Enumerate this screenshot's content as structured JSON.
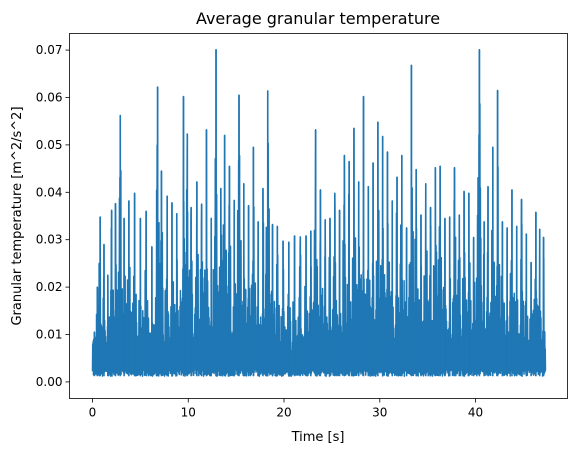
{
  "chart_data": {
    "type": "line",
    "title": "Average granular temperature",
    "xlabel": "Time [s]",
    "ylabel": "Granular temperature [m^2/s^2]",
    "xlim": [
      -2.4,
      49.6
    ],
    "ylim": [
      -0.0035,
      0.0735
    ],
    "xticks": [
      0,
      10,
      20,
      30,
      40
    ],
    "xtick_labels": [
      "0",
      "10",
      "20",
      "30",
      "40"
    ],
    "yticks": [
      0.0,
      0.01,
      0.02,
      0.03,
      0.04,
      0.05,
      0.06,
      0.07
    ],
    "ytick_labels": [
      "0.00",
      "0.01",
      "0.02",
      "0.03",
      "0.04",
      "0.05",
      "0.06",
      "0.07"
    ],
    "grid": false,
    "colors": {
      "line": "#1f77b4"
    },
    "series": [
      {
        "x_range": [
          0.0,
          47.3
        ],
        "baseline_min": 0.0012,
        "baseline_max": 0.0028,
        "peaks": [
          [
            0.2,
            0.0105
          ],
          [
            0.5,
            0.02
          ],
          [
            0.7,
            0.025
          ],
          [
            0.8,
            0.0348
          ],
          [
            1.2,
            0.029
          ],
          [
            1.6,
            0.0225
          ],
          [
            2.0,
            0.0362
          ],
          [
            2.4,
            0.0376
          ],
          [
            2.9,
            0.0562
          ],
          [
            3.3,
            0.0345
          ],
          [
            3.8,
            0.0382
          ],
          [
            4.4,
            0.0398
          ],
          [
            5.0,
            0.0345
          ],
          [
            5.6,
            0.036
          ],
          [
            6.2,
            0.0285
          ],
          [
            6.8,
            0.0622
          ],
          [
            7.2,
            0.0445
          ],
          [
            7.8,
            0.0392
          ],
          [
            8.3,
            0.0378
          ],
          [
            8.8,
            0.0355
          ],
          [
            9.5,
            0.0602
          ],
          [
            9.9,
            0.0523
          ],
          [
            10.3,
            0.0368
          ],
          [
            10.9,
            0.0422
          ],
          [
            11.4,
            0.0375
          ],
          [
            11.9,
            0.0532
          ],
          [
            12.4,
            0.0345
          ],
          [
            12.9,
            0.0701
          ],
          [
            13.4,
            0.0408
          ],
          [
            13.8,
            0.052
          ],
          [
            14.3,
            0.0455
          ],
          [
            14.8,
            0.0383
          ],
          [
            15.3,
            0.0605
          ],
          [
            15.8,
            0.0418
          ],
          [
            16.3,
            0.0372
          ],
          [
            16.8,
            0.0495
          ],
          [
            17.3,
            0.0338
          ],
          [
            17.8,
            0.0408
          ],
          [
            18.3,
            0.0614
          ],
          [
            18.8,
            0.0332
          ],
          [
            19.3,
            0.0328
          ],
          [
            19.9,
            0.0297
          ],
          [
            20.5,
            0.0295
          ],
          [
            21.1,
            0.0308
          ],
          [
            21.7,
            0.0306
          ],
          [
            22.3,
            0.0308
          ],
          [
            22.8,
            0.0318
          ],
          [
            23.3,
            0.0532
          ],
          [
            23.8,
            0.0405
          ],
          [
            24.3,
            0.0342
          ],
          [
            24.8,
            0.0345
          ],
          [
            25.3,
            0.0398
          ],
          [
            25.8,
            0.0362
          ],
          [
            26.3,
            0.0478
          ],
          [
            26.8,
            0.0465
          ],
          [
            27.3,
            0.0535
          ],
          [
            27.8,
            0.0422
          ],
          [
            28.3,
            0.0602
          ],
          [
            28.8,
            0.0412
          ],
          [
            29.3,
            0.0462
          ],
          [
            29.8,
            0.0548
          ],
          [
            30.3,
            0.0518
          ],
          [
            30.8,
            0.0485
          ],
          [
            31.3,
            0.0382
          ],
          [
            31.8,
            0.0432
          ],
          [
            32.3,
            0.0478
          ],
          [
            32.8,
            0.0325
          ],
          [
            33.3,
            0.0668
          ],
          [
            33.8,
            0.0448
          ],
          [
            34.3,
            0.0352
          ],
          [
            34.8,
            0.0418
          ],
          [
            35.3,
            0.0368
          ],
          [
            35.8,
            0.0452
          ],
          [
            36.3,
            0.0455
          ],
          [
            36.8,
            0.0345
          ],
          [
            37.3,
            0.0348
          ],
          [
            37.8,
            0.0452
          ],
          [
            38.3,
            0.0352
          ],
          [
            38.8,
            0.0402
          ],
          [
            39.3,
            0.0398
          ],
          [
            39.8,
            0.0305
          ],
          [
            40.4,
            0.0701
          ],
          [
            40.9,
            0.0338
          ],
          [
            41.3,
            0.0412
          ],
          [
            41.8,
            0.0495
          ],
          [
            42.3,
            0.0615
          ],
          [
            42.8,
            0.0338
          ],
          [
            43.3,
            0.0325
          ],
          [
            43.8,
            0.0405
          ],
          [
            44.3,
            0.0328
          ],
          [
            44.8,
            0.0385
          ],
          [
            45.3,
            0.0312
          ],
          [
            45.8,
            0.0252
          ],
          [
            46.3,
            0.0358
          ],
          [
            46.7,
            0.0322
          ],
          [
            47.1,
            0.0305
          ]
        ]
      }
    ]
  }
}
